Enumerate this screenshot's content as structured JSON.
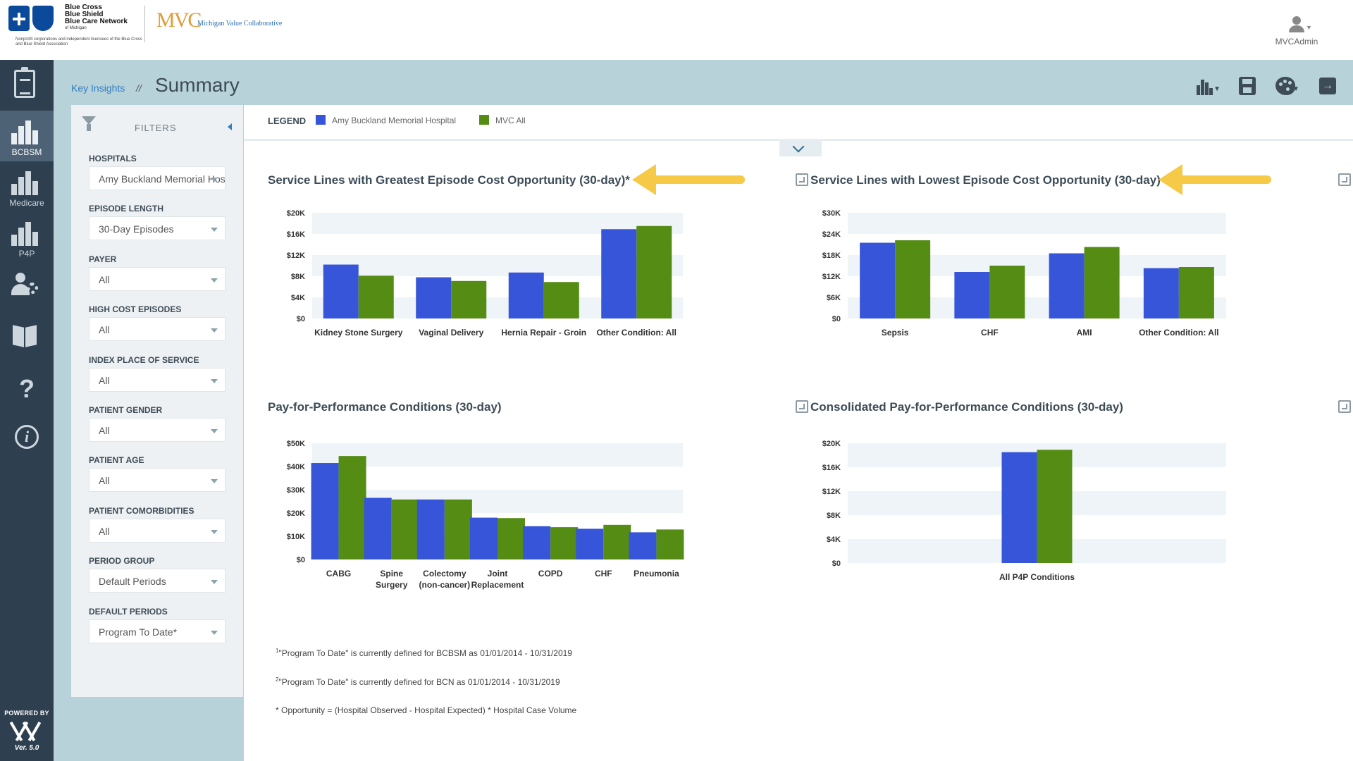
{
  "header": {
    "bcbs_brand_lines": [
      "Blue Cross",
      "Blue Shield",
      "Blue Care Network"
    ],
    "bcbs_brand_sub": "of Michigan",
    "bcbs_fine_print": "Nonprofit corporations and independent licensees of the Blue Cross and Blue Shield Association",
    "mvc_mark": "MVC",
    "mvc_name": "Michigan Value Collaborative",
    "user_name": "MVCAdmin"
  },
  "nav": {
    "items": [
      {
        "label": "",
        "icon": "clipboard-icon"
      },
      {
        "label": "BCBSM",
        "icon": "bar-chart-icon",
        "active": true
      },
      {
        "label": "Medicare",
        "icon": "bar-chart-icon"
      },
      {
        "label": "P4P",
        "icon": "bar-chart-icon"
      },
      {
        "label": "",
        "icon": "user-gear-icon"
      },
      {
        "label": "",
        "icon": "book-icon"
      },
      {
        "label": "",
        "icon": "question-icon",
        "glyph": "?"
      },
      {
        "label": "",
        "icon": "info-icon",
        "glyph": "i"
      }
    ],
    "powered_by": "POWERED BY",
    "version": "Ver. 5.0"
  },
  "breadcrumb": {
    "link": "Key Insights",
    "separator": "//",
    "title": "Summary"
  },
  "toolbar": [
    "chart-type-icon",
    "save-icon",
    "palette-icon",
    "exit-icon"
  ],
  "filters": {
    "title": "FILTERS",
    "items": [
      {
        "label": "HOSPITALS",
        "value": "Amy Buckland Memorial Hospital"
      },
      {
        "label": "EPISODE LENGTH",
        "value": "30-Day Episodes"
      },
      {
        "label": "PAYER",
        "value": "All"
      },
      {
        "label": "HIGH COST EPISODES",
        "value": "All"
      },
      {
        "label": "INDEX PLACE OF SERVICE",
        "value": "All"
      },
      {
        "label": "PATIENT GENDER",
        "value": "All"
      },
      {
        "label": "PATIENT AGE",
        "value": "All"
      },
      {
        "label": "PATIENT COMORBIDITIES",
        "value": "All"
      },
      {
        "label": "PERIOD GROUP",
        "value": "Default Periods"
      },
      {
        "label": "DEFAULT PERIODS",
        "value": "Program To Date*"
      }
    ]
  },
  "legend": {
    "title": "LEGEND",
    "items": [
      {
        "label": "Amy Buckland Memorial Hospital",
        "color": "#3655d9"
      },
      {
        "label": "MVC All",
        "color": "#548c14"
      }
    ]
  },
  "colors": {
    "hospital": "#3655d9",
    "mvc": "#548c14",
    "annotation": "#f6c946"
  },
  "chart_data": [
    {
      "type": "bar",
      "title": "Service Lines with Greatest Episode Cost Opportunity (30-day)*",
      "categories": [
        "Kidney Stone Surgery",
        "Vaginal Delivery",
        "Hernia Repair - Groin",
        "Other Condition: All"
      ],
      "series": [
        {
          "name": "Amy Buckland Memorial Hospital",
          "values": [
            10200,
            7800,
            8700,
            16900
          ]
        },
        {
          "name": "MVC All",
          "values": [
            8100,
            7100,
            6900,
            17500
          ]
        }
      ],
      "ylim": [
        0,
        20000
      ],
      "yticks": [
        "$0",
        "$4K",
        "$8K",
        "$12K",
        "$16K",
        "$20K"
      ]
    },
    {
      "type": "bar",
      "title": "Service Lines with Lowest Episode Cost Opportunity (30-day)",
      "categories": [
        "Sepsis",
        "CHF",
        "AMI",
        "Other Condition: All"
      ],
      "series": [
        {
          "name": "Amy Buckland Memorial Hospital",
          "values": [
            21500,
            13200,
            18500,
            14300
          ]
        },
        {
          "name": "MVC All",
          "values": [
            22200,
            15000,
            20300,
            14600
          ]
        }
      ],
      "ylim": [
        0,
        30000
      ],
      "yticks": [
        "$0",
        "$6K",
        "$12K",
        "$18K",
        "$24K",
        "$30K"
      ]
    },
    {
      "type": "bar",
      "title": "Pay-for-Performance Conditions (30-day)",
      "categories": [
        "CABG",
        "Spine Surgery",
        "Colectomy (non-cancer)",
        "Joint Replacement",
        "COPD",
        "CHF",
        "Pneumonia"
      ],
      "series": [
        {
          "name": "Amy Buckland Memorial Hospital",
          "values": [
            41500,
            26500,
            25800,
            18000,
            14300,
            13200,
            11700
          ]
        },
        {
          "name": "MVC All",
          "values": [
            44500,
            25800,
            25800,
            17800,
            13900,
            14900,
            12900
          ]
        }
      ],
      "ylim": [
        0,
        50000
      ],
      "yticks": [
        "$0",
        "$10K",
        "$20K",
        "$30K",
        "$40K",
        "$50K"
      ]
    },
    {
      "type": "bar",
      "title": "Consolidated Pay-for-Performance Conditions (30-day)",
      "categories": [
        "All P4P Conditions"
      ],
      "series": [
        {
          "name": "Amy Buckland Memorial Hospital",
          "values": [
            18500
          ]
        },
        {
          "name": "MVC All",
          "values": [
            18900
          ]
        }
      ],
      "ylim": [
        0,
        20000
      ],
      "yticks": [
        "$0",
        "$4K",
        "$8K",
        "$12K",
        "$16K",
        "$20K"
      ]
    }
  ],
  "footnotes": [
    {
      "sup": "1",
      "text": "\"Program To Date\" is currently defined for BCBSM as 01/01/2014 - 10/31/2019"
    },
    {
      "sup": "2",
      "text": "\"Program To Date\" is currently defined for BCN as 01/01/2014 - 10/31/2019"
    },
    {
      "sup": "",
      "text": "* Opportunity = (Hospital Observed - Hospital Expected) * Hospital Case Volume"
    }
  ]
}
